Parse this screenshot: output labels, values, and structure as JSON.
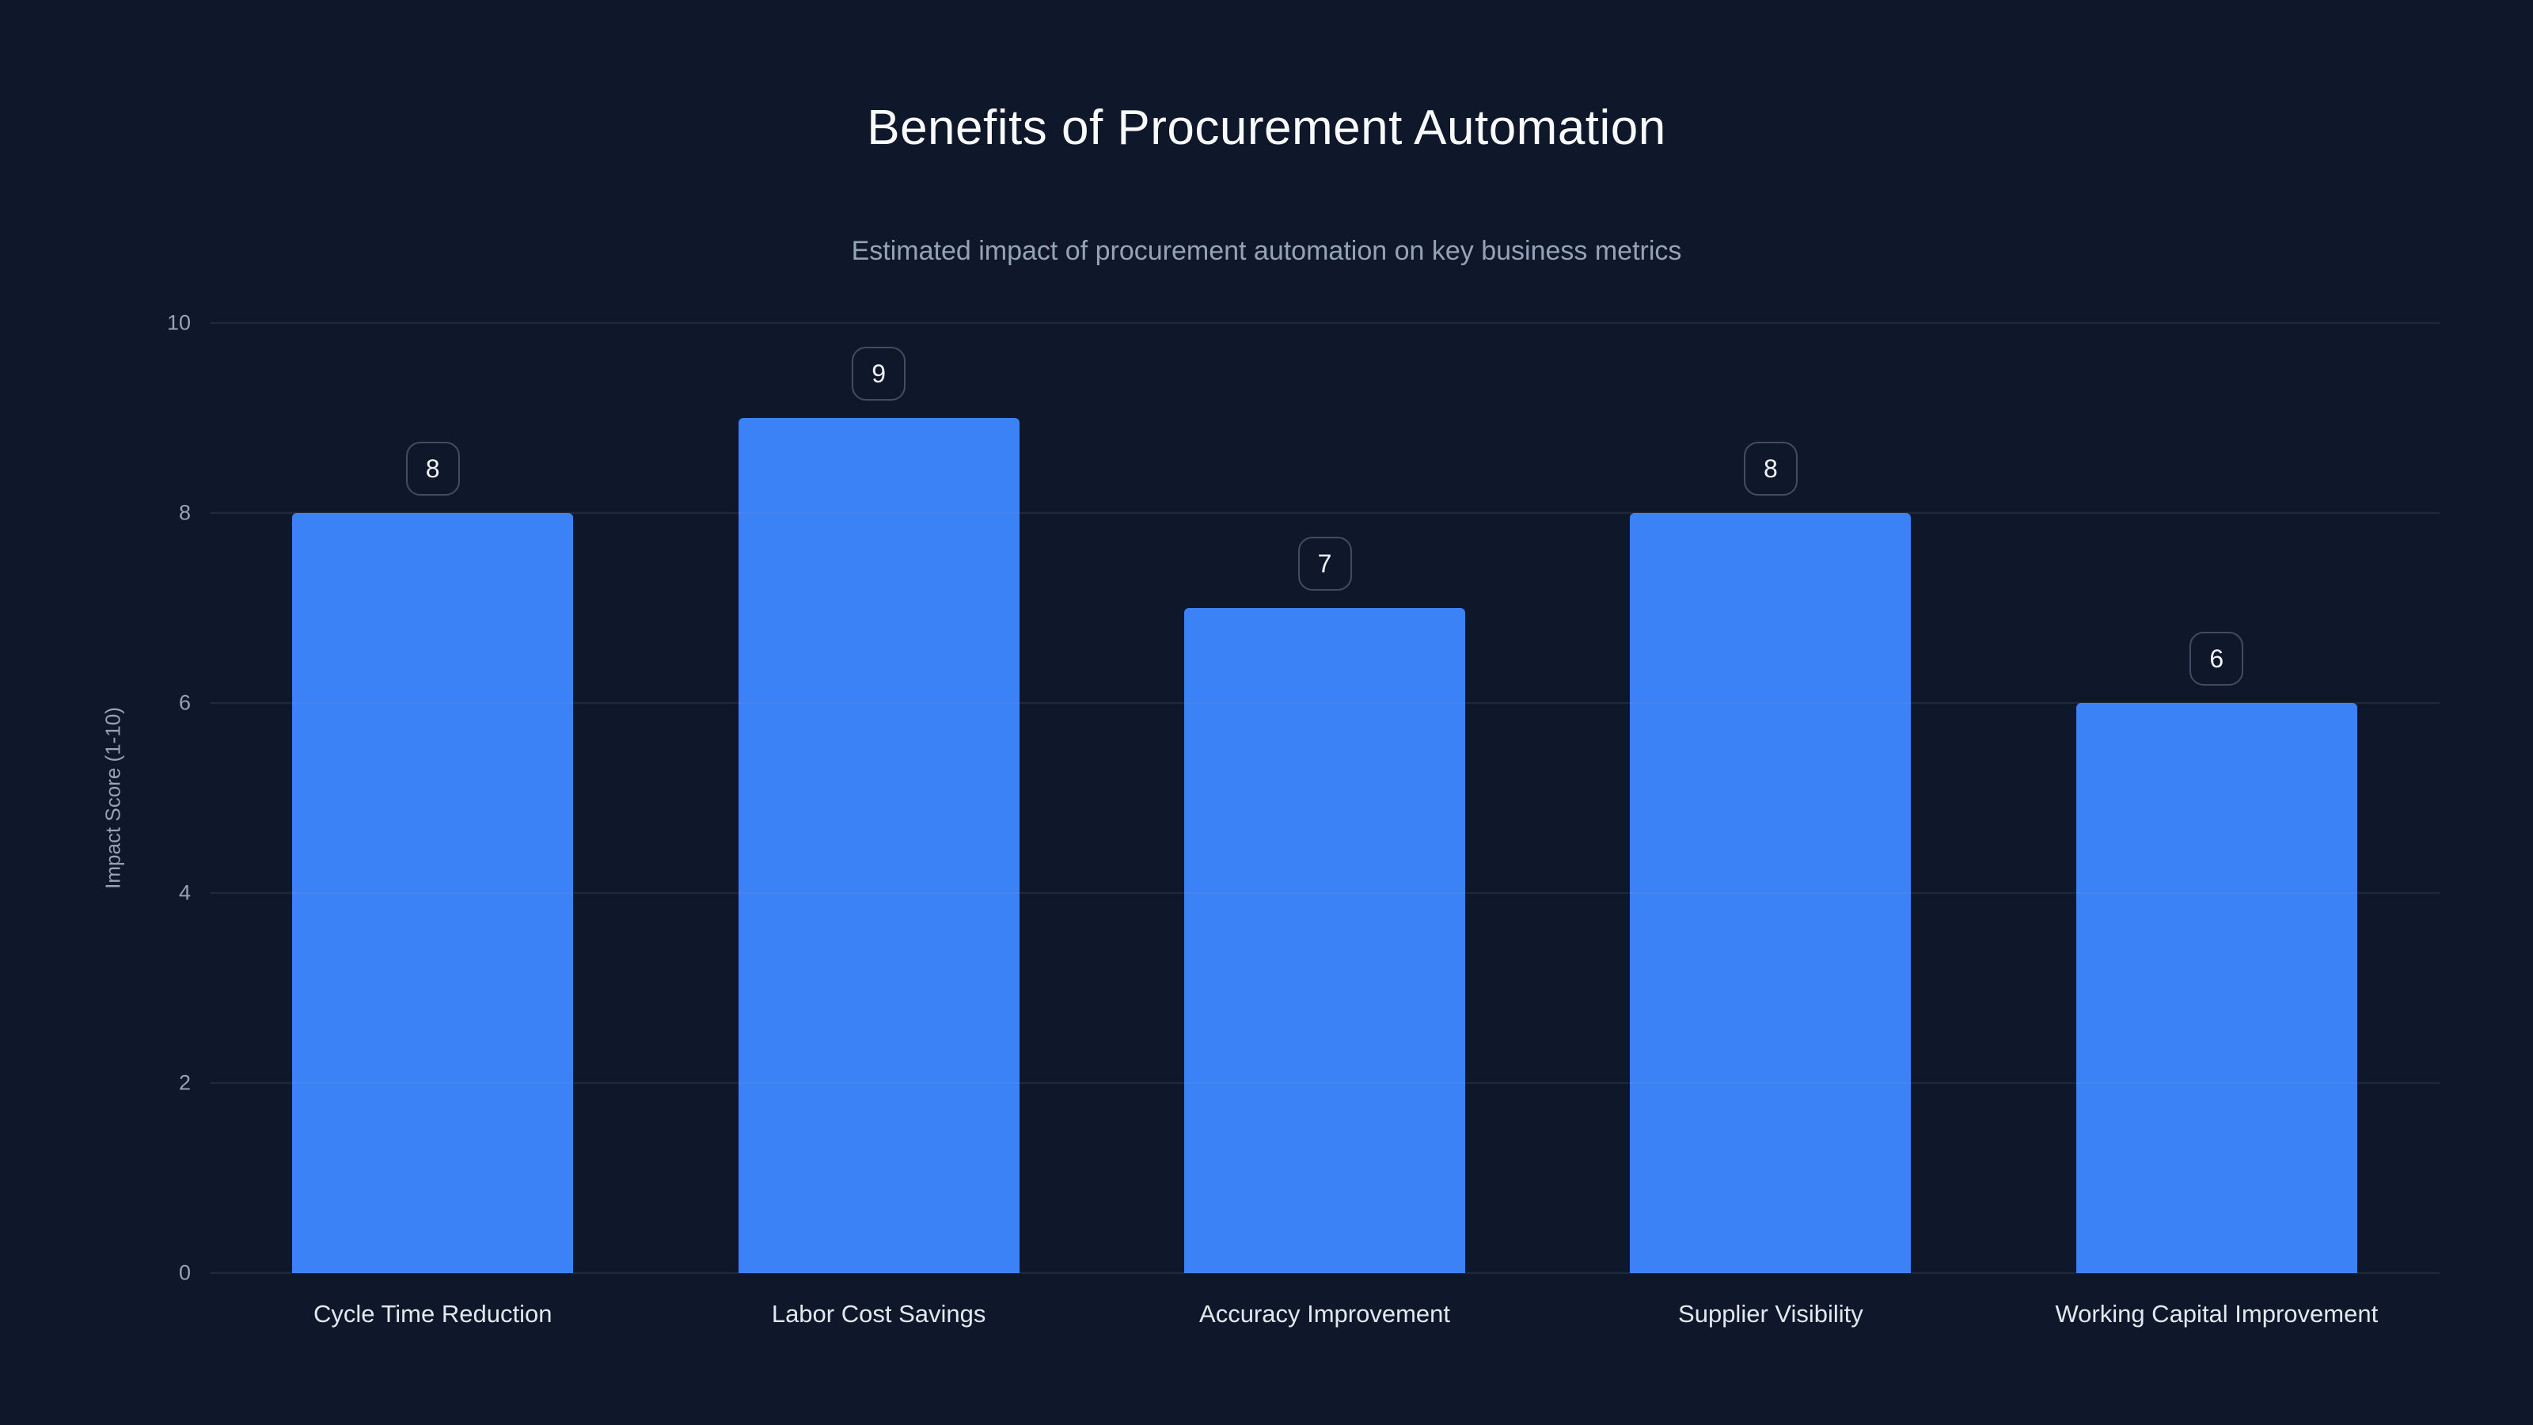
{
  "chart_data": {
    "type": "bar",
    "title": "Benefits of Procurement Automation",
    "subtitle": "Estimated impact of procurement automation on key business metrics",
    "categories": [
      "Cycle Time Reduction",
      "Labor Cost Savings",
      "Accuracy Improvement",
      "Supplier Visibility",
      "Working Capital Improvement"
    ],
    "values": [
      8,
      9,
      7,
      8,
      6
    ],
    "value_labels": [
      "8",
      "9",
      "7",
      "8",
      "6"
    ],
    "xlabel": "",
    "ylabel": "Impact Score (1-10)",
    "ylim": [
      0,
      10
    ],
    "yticks": [
      0,
      2,
      4,
      6,
      8,
      10
    ],
    "grid": true,
    "legend": false,
    "colors": {
      "background": "#0f172a",
      "bar": "#3b82f6",
      "gridline": "rgba(148,163,184,0.13)",
      "title_text": "#f8fafc",
      "subtitle_text": "#94a3b8",
      "tick_text": "#94a3b8",
      "category_text": "#e2e8f0",
      "badge_border": "#414d63"
    }
  }
}
